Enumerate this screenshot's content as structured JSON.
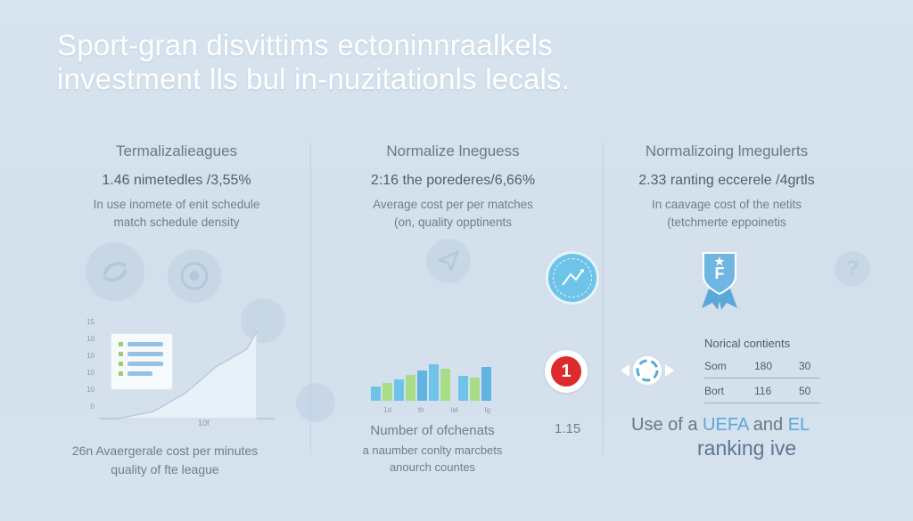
{
  "title": {
    "line1": "Sport-gran disvittims ectoninnraalkels",
    "line2": "investment lls bul in-nuzitationls lecals."
  },
  "columns": [
    {
      "heading": "Termalizalieagues",
      "stat": "1.46 nimetedles /3,55%",
      "desc_line1": "In use inomete of enit schedule",
      "desc_line2": "match schedule density"
    },
    {
      "heading": "Normalize lneguess",
      "stat": "2:16 the porederes/6,66%",
      "desc_line1": "Average cost per per matches",
      "desc_line2": "(on, quality opptinents"
    },
    {
      "heading": "Normalizoing lmegulerts",
      "stat": "2.33 ranting eccerele /4grtls",
      "desc_line1": "In caavage cost of the netits",
      "desc_line2": "(tetchmerte eppoinetis"
    }
  ],
  "left_chart": {
    "y_ticks": [
      "15",
      "10",
      "10",
      "10",
      "10",
      "0"
    ],
    "x_label": "10f",
    "footer_line1": "26n Avaergerale cost per minutes",
    "footer_line2": "quality of fte league"
  },
  "mid_chart": {
    "x_ticks": [
      "1d",
      "th",
      "lel",
      "lg"
    ],
    "footer_line1": "Number of ofchenats",
    "footer_line2": "a naumber conlty marcbets",
    "footer_line3": "anourch countes",
    "value": "1.15",
    "badge_number": "1",
    "colors": {
      "blue": "#6ec3e8",
      "green": "#a9dc86",
      "bar_blue": "#5fb5e0"
    }
  },
  "right_panel": {
    "shield_letter": "F",
    "table_title": "Norical contients",
    "rows": [
      {
        "name": "Som",
        "v1": "180",
        "v2": "30"
      },
      {
        "name": "Bort",
        "v1": "116",
        "v2": "50"
      }
    ],
    "footer_prefix": "Use of a",
    "footer_uefa": "UEFA",
    "footer_and": "and",
    "footer_el": "EL",
    "footer_line2": "ranking ive",
    "accent": "#5aa8d8"
  },
  "icons": {
    "question": "?"
  }
}
